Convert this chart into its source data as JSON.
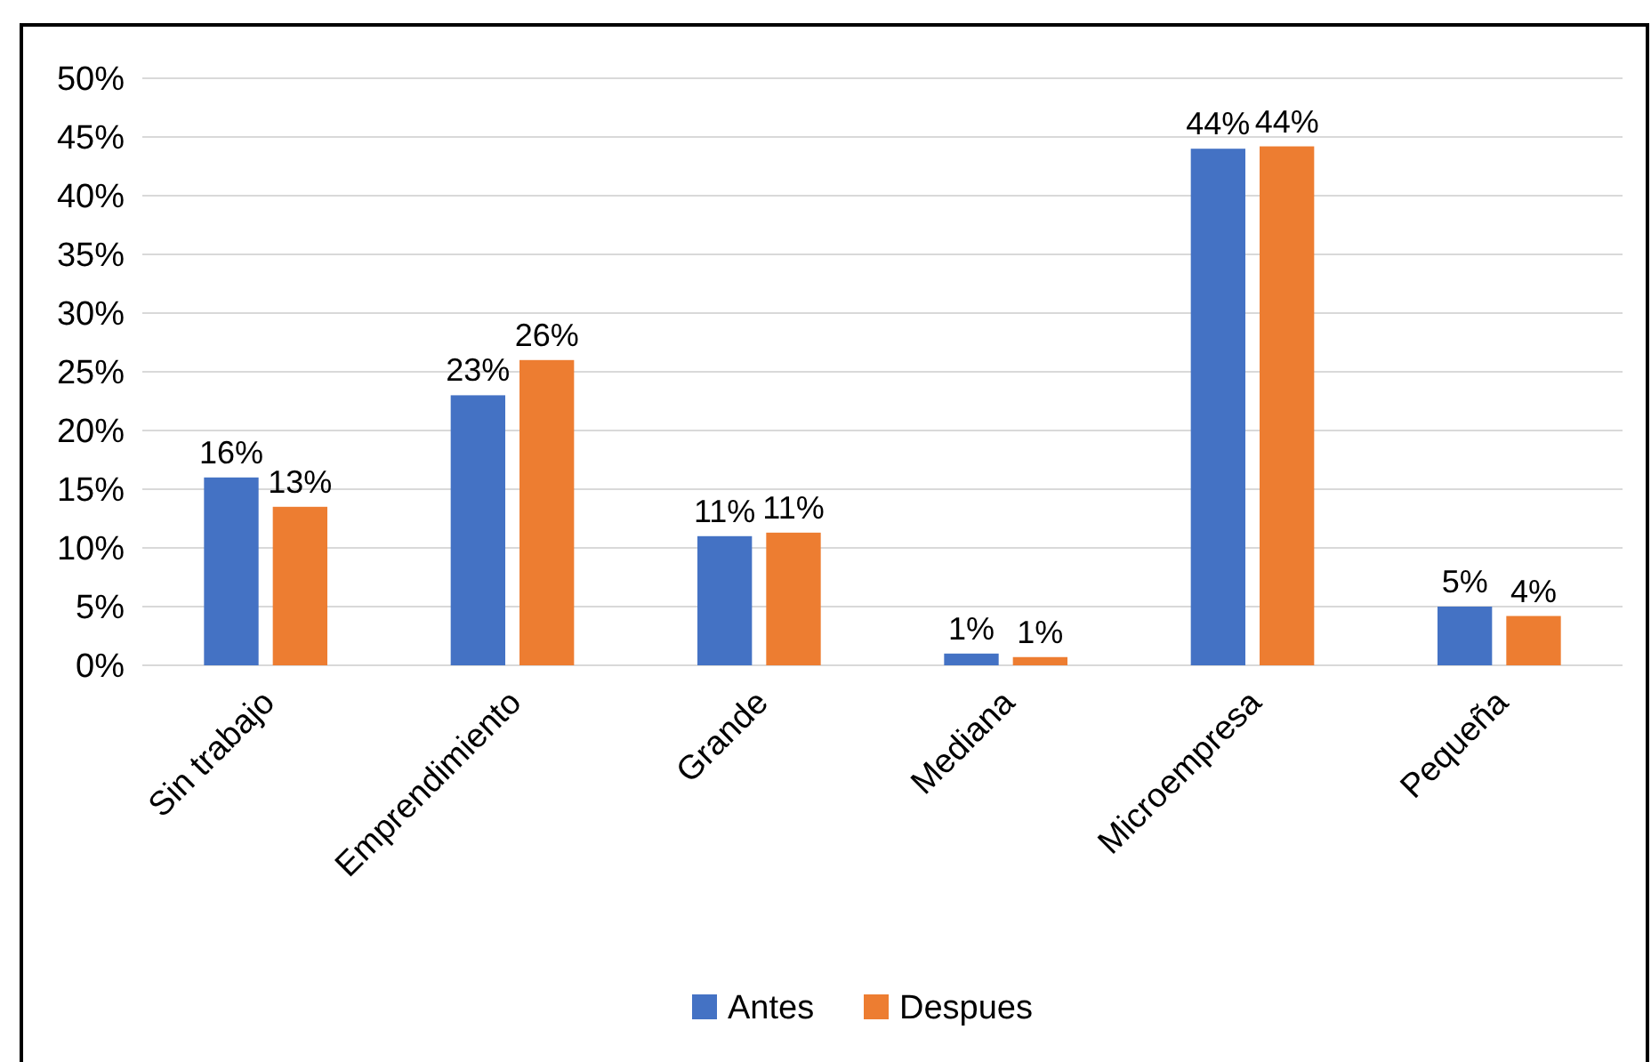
{
  "chart_data": {
    "type": "bar",
    "categories": [
      "Sin trabajo",
      "Emprendimiento",
      "Grande",
      "Mediana",
      "Microempresa",
      "Pequeña"
    ],
    "series": [
      {
        "name": "Antes",
        "color": "#4472c4",
        "values": [
          16,
          23,
          11,
          1,
          44,
          5
        ],
        "value_labels": [
          "16%",
          "23%",
          "11%",
          "1%",
          "44%",
          "5%"
        ]
      },
      {
        "name": "Despues",
        "color": "#ed7d31",
        "values": [
          13.5,
          26,
          11.3,
          0.7,
          44.2,
          4.2
        ],
        "value_labels": [
          "13%",
          "26%",
          "11%",
          "1%",
          "44%",
          "4%"
        ]
      }
    ],
    "ylim": [
      0,
      50
    ],
    "yticks": [
      {
        "value": 0,
        "label": "0%"
      },
      {
        "value": 5,
        "label": "5%"
      },
      {
        "value": 10,
        "label": "10%"
      },
      {
        "value": 15,
        "label": "15%"
      },
      {
        "value": 20,
        "label": "20%"
      },
      {
        "value": 25,
        "label": "25%"
      },
      {
        "value": 30,
        "label": "30%"
      },
      {
        "value": 35,
        "label": "35%"
      },
      {
        "value": 40,
        "label": "40%"
      },
      {
        "value": 45,
        "label": "45%"
      },
      {
        "value": 50,
        "label": "50%"
      }
    ],
    "grid": "y",
    "legend": "bottom"
  }
}
